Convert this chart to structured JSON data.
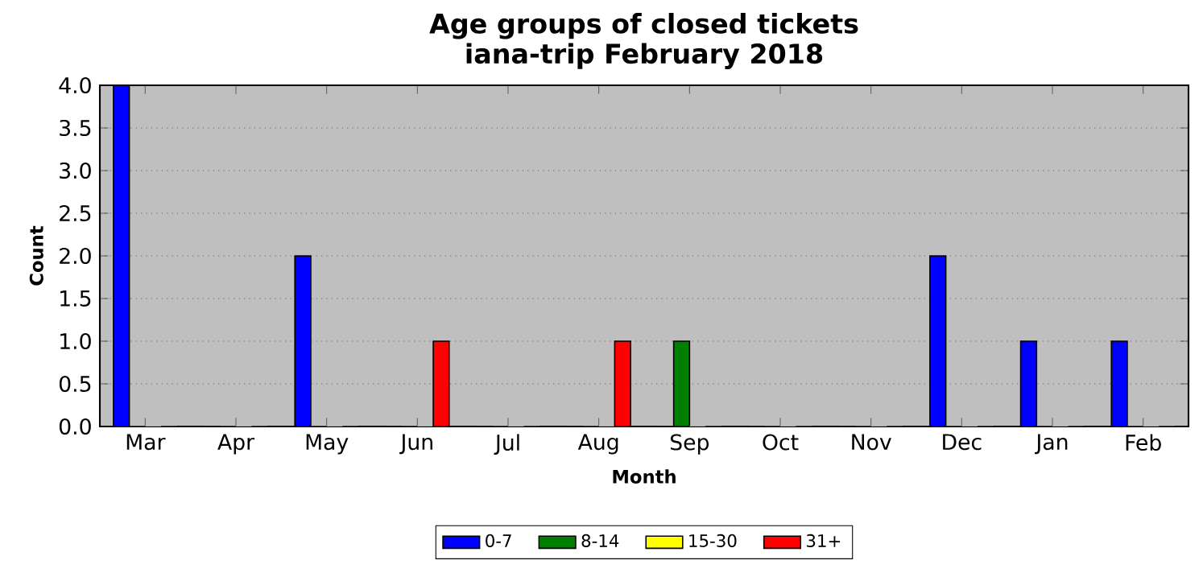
{
  "chart_data": {
    "type": "bar",
    "title": "Age groups of closed tickets",
    "subtitle": "iana-trip February 2018",
    "xlabel": "Month",
    "ylabel": "Count",
    "categories": [
      "Mar",
      "Apr",
      "May",
      "Jun",
      "Jul",
      "Aug",
      "Sep",
      "Oct",
      "Nov",
      "Dec",
      "Jan",
      "Feb"
    ],
    "series": [
      {
        "name": "0-7",
        "color": "#0000ff",
        "values": [
          4,
          0,
          2,
          0,
          0,
          0,
          0,
          0,
          0,
          2,
          1,
          1
        ]
      },
      {
        "name": "8-14",
        "color": "#008000",
        "values": [
          0,
          0,
          0,
          0,
          0,
          0,
          1,
          0,
          0,
          0,
          0,
          0
        ]
      },
      {
        "name": "15-30",
        "color": "#ffff00",
        "values": [
          0,
          0,
          0,
          0,
          0,
          0,
          0,
          0,
          0,
          0,
          0,
          0
        ]
      },
      {
        "name": "31+",
        "color": "#ff0000",
        "values": [
          0,
          0,
          0,
          1,
          0,
          1,
          0,
          0,
          0,
          0,
          0,
          0
        ]
      }
    ],
    "ylim": [
      0,
      4
    ],
    "yticks": [
      {
        "value": 0,
        "label": "0.0"
      },
      {
        "value": 0.5,
        "label": "0.5"
      },
      {
        "value": 1,
        "label": "1.0"
      },
      {
        "value": 1.5,
        "label": "1.5"
      },
      {
        "value": 2,
        "label": "2.0"
      },
      {
        "value": 2.5,
        "label": "2.5"
      },
      {
        "value": 3,
        "label": "3.0"
      },
      {
        "value": 3.5,
        "label": "3.5"
      },
      {
        "value": 4,
        "label": "4.0"
      }
    ],
    "grid": "y",
    "legend": "bottom"
  }
}
